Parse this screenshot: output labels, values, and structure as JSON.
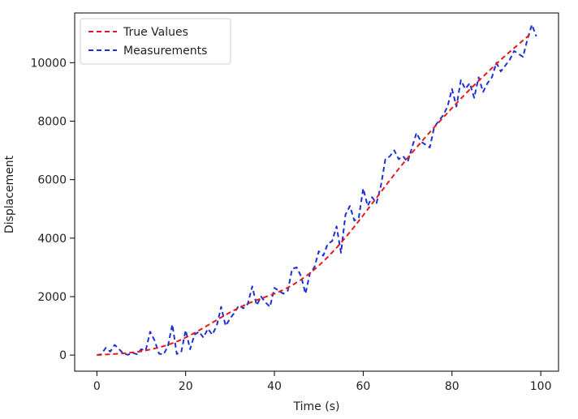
{
  "chart_data": {
    "type": "line",
    "xlabel": "Time (s)",
    "ylabel": "Displacement",
    "xlim": [
      -5,
      104
    ],
    "ylim": [
      -550,
      11700
    ],
    "x_ticks": [
      0,
      20,
      40,
      60,
      80,
      100
    ],
    "y_ticks": [
      0,
      2000,
      4000,
      6000,
      8000,
      10000
    ],
    "x_tick_labels": [
      "0",
      "20",
      "40",
      "60",
      "80",
      "100"
    ],
    "y_tick_labels": [
      "0",
      "2000",
      "4000",
      "6000",
      "8000",
      "10000"
    ],
    "grid": false,
    "legend_position": "top-left",
    "series": [
      {
        "name": "True Values",
        "color": "#e41a1c",
        "style": "dashed",
        "x": [
          0,
          2,
          4,
          6,
          8,
          10,
          12,
          14,
          16,
          18,
          20,
          22,
          24,
          26,
          28,
          30,
          32,
          34,
          36,
          38,
          40,
          42,
          44,
          46,
          48,
          50,
          52,
          54,
          56,
          58,
          60,
          62,
          64,
          66,
          68,
          70,
          72,
          74,
          76,
          78,
          80,
          82,
          84,
          86,
          88,
          90,
          92,
          94,
          96,
          98
        ],
        "y": [
          0,
          20,
          40,
          60,
          90,
          130,
          190,
          260,
          350,
          460,
          600,
          760,
          930,
          1110,
          1290,
          1460,
          1620,
          1760,
          1880,
          1990,
          2100,
          2230,
          2390,
          2580,
          2800,
          3060,
          3350,
          3670,
          4020,
          4390,
          4780,
          5180,
          5580,
          5980,
          6370,
          6740,
          7100,
          7450,
          7790,
          8120,
          8450,
          8770,
          9080,
          9380,
          9670,
          9960,
          10240,
          10500,
          10760,
          11020
        ]
      },
      {
        "name": "Measurements",
        "color": "#1f2fd6",
        "style": "dashed",
        "x": [
          0,
          1,
          2,
          3,
          4,
          5,
          6,
          7,
          8,
          9,
          10,
          11,
          12,
          13,
          14,
          15,
          16,
          17,
          18,
          19,
          20,
          21,
          22,
          23,
          24,
          25,
          26,
          27,
          28,
          29,
          30,
          31,
          32,
          33,
          34,
          35,
          36,
          37,
          38,
          39,
          40,
          41,
          42,
          43,
          44,
          45,
          46,
          47,
          48,
          49,
          50,
          51,
          52,
          53,
          54,
          55,
          56,
          57,
          58,
          59,
          60,
          61,
          62,
          63,
          64,
          65,
          66,
          67,
          68,
          69,
          70,
          71,
          72,
          73,
          74,
          75,
          76,
          77,
          78,
          79,
          80,
          81,
          82,
          83,
          84,
          85,
          86,
          87,
          88,
          89,
          90,
          91,
          92,
          93,
          94,
          95,
          96,
          97,
          98,
          99
        ],
        "y": [
          0,
          30,
          250,
          120,
          350,
          200,
          50,
          10,
          80,
          30,
          200,
          150,
          800,
          500,
          50,
          20,
          300,
          1050,
          40,
          100,
          850,
          200,
          700,
          800,
          600,
          900,
          700,
          1000,
          1650,
          1000,
          1250,
          1450,
          1700,
          1600,
          1750,
          2350,
          1700,
          2000,
          1800,
          1650,
          2300,
          2200,
          2100,
          2200,
          2950,
          3000,
          2700,
          2100,
          2800,
          3000,
          3550,
          3400,
          3800,
          3900,
          4400,
          3500,
          4800,
          5100,
          4600,
          4700,
          5700,
          5100,
          5400,
          5200,
          5800,
          6700,
          6800,
          7000,
          6700,
          6800,
          6600,
          7100,
          7600,
          7300,
          7200,
          7100,
          7800,
          8000,
          8200,
          8500,
          9100,
          8500,
          9400,
          9100,
          9300,
          8800,
          9500,
          9000,
          9300,
          9500,
          10000,
          9700,
          9900,
          10100,
          10400,
          10300,
          10200,
          10800,
          11300,
          10900
        ]
      }
    ]
  }
}
